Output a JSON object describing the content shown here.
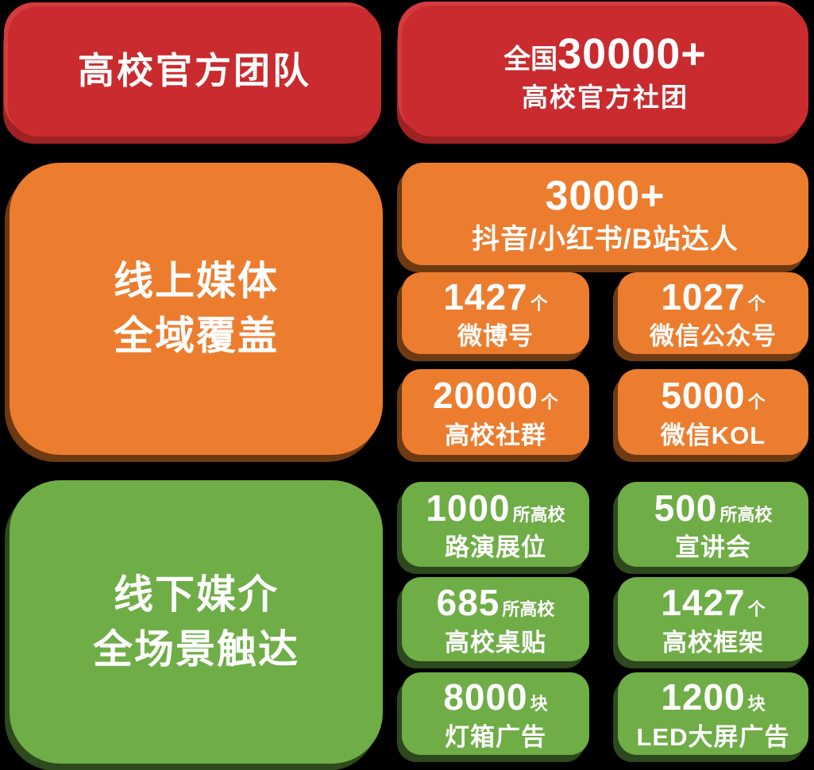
{
  "colors": {
    "red": "#C92B2E",
    "red_shadow_dark": "#9E2123",
    "red_shadow_light": "#D43B3E",
    "orange": "#EC7D2F",
    "orange_shadow": "#6E3A12",
    "green": "#6FAD47",
    "green_shadow": "#2E491D",
    "text": "#FFFFFF",
    "background": "#000000"
  },
  "official_group": {
    "title": "高校官方团队",
    "stat": {
      "prefix": "全国",
      "number": "30000+",
      "label": "高校官方社团"
    }
  },
  "online_group": {
    "title_line1": "线上媒体",
    "title_line2": "全域覆盖",
    "wide_card": {
      "number": "3000+",
      "label": "抖音/小红书/B站达人"
    },
    "cards": [
      {
        "number": "1427",
        "unit": "个",
        "label": "微博号"
      },
      {
        "number": "1027",
        "unit": "个",
        "label": "微信公众号"
      },
      {
        "number": "20000",
        "unit": "个",
        "label": "高校社群"
      },
      {
        "number": "5000",
        "unit": "个",
        "label": "微信KOL"
      }
    ]
  },
  "offline_group": {
    "title_line1": "线下媒介",
    "title_line2": "全场景触达",
    "cards": [
      {
        "number": "1000",
        "unit": "所高校",
        "label": "路演展位"
      },
      {
        "number": "500",
        "unit": "所高校",
        "label": "宣讲会"
      },
      {
        "number": "685",
        "unit": "所高校",
        "label": "高校桌贴"
      },
      {
        "number": "1427",
        "unit": "个",
        "label": "高校框架"
      },
      {
        "number": "8000",
        "unit": "块",
        "label": "灯箱广告"
      },
      {
        "number": "1200",
        "unit": "块",
        "label": "LED大屏广告"
      }
    ]
  }
}
